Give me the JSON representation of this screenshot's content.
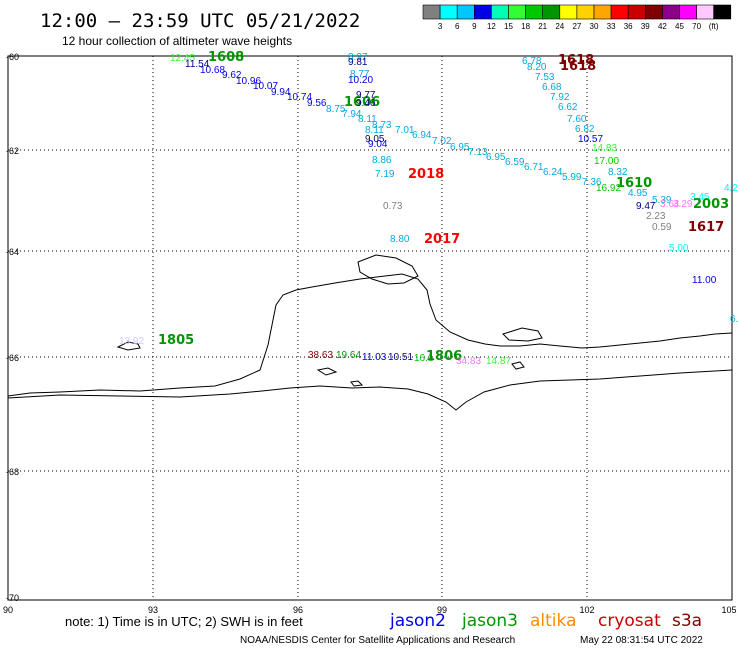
{
  "header": {
    "title": "12:00 – 23:59 UTC 05/21/2022",
    "subtitle": "12 hour collection of altimeter wave heights"
  },
  "scale": {
    "colors": [
      "#808080",
      "#00ffff",
      "#00c8ff",
      "#0000e6",
      "#00ffb4",
      "#32ff32",
      "#00c800",
      "#009600",
      "#ffff00",
      "#ffd200",
      "#ffa500",
      "#ff0000",
      "#c80000",
      "#800000",
      "#8b008b",
      "#ff00ff",
      "#ffc8ff",
      "#000000"
    ],
    "labels": [
      "3",
      "6",
      "9",
      "12",
      "15",
      "18",
      "21",
      "24",
      "27",
      "30",
      "33",
      "36",
      "39",
      "42",
      "45",
      "70",
      "(ft)"
    ]
  },
  "axes": {
    "y_ticks": [
      "-60",
      "-62",
      "-64",
      "-66",
      "-68",
      "-70"
    ],
    "x_ticks": [
      "90",
      "93",
      "96",
      "99",
      "102",
      "105"
    ]
  },
  "obs": [
    {
      "t": "12.45",
      "c": "#32ff32"
    },
    {
      "t": "1608",
      "c": "#009600",
      "time": true
    },
    {
      "t": "11.54",
      "c": "#000080"
    },
    {
      "t": "10.68",
      "c": "#0000e6"
    },
    {
      "t": "9.62",
      "c": "#0000e6"
    },
    {
      "t": "10.96",
      "c": "#0000e6"
    },
    {
      "t": "10.07",
      "c": "#0000e6"
    },
    {
      "t": "9.94",
      "c": "#0000e6"
    },
    {
      "t": "10.74",
      "c": "#0000e6"
    },
    {
      "t": "9.56",
      "c": "#0000e6"
    },
    {
      "t": "8.75",
      "c": "#00aadd"
    },
    {
      "t": "1606",
      "c": "#009600",
      "time": true
    },
    {
      "t": "8.97",
      "c": "#00aadd"
    },
    {
      "t": "9.81",
      "c": "#000080"
    },
    {
      "t": "8.77",
      "c": "#00aadd"
    },
    {
      "t": "10.20",
      "c": "#0000e6"
    },
    {
      "t": "9.77",
      "c": "#000080"
    },
    {
      "t": "9.46",
      "c": "#000080"
    },
    {
      "t": "7.94",
      "c": "#00aadd"
    },
    {
      "t": "8.11",
      "c": "#00aadd"
    },
    {
      "t": "8.73",
      "c": "#00aadd"
    },
    {
      "t": "8.11",
      "c": "#00aadd"
    },
    {
      "t": "7.01",
      "c": "#00aadd"
    },
    {
      "t": "9.05",
      "c": "#000080"
    },
    {
      "t": "9.04",
      "c": "#0000e6"
    },
    {
      "t": "6.94",
      "c": "#00aadd"
    },
    {
      "t": "7.02",
      "c": "#00aadd"
    },
    {
      "t": "6.95",
      "c": "#00aadd"
    },
    {
      "t": "7.13",
      "c": "#00aadd"
    },
    {
      "t": "6.95",
      "c": "#00aadd"
    },
    {
      "t": "6.59",
      "c": "#00aadd"
    },
    {
      "t": "6.71",
      "c": "#00aadd"
    },
    {
      "t": "6.24",
      "c": "#00aadd"
    },
    {
      "t": "5.99",
      "c": "#00aadd"
    },
    {
      "t": "8.86",
      "c": "#00aadd"
    },
    {
      "t": "7.19",
      "c": "#00aadd"
    },
    {
      "t": "2018",
      "c": "#ff0000",
      "time": true
    },
    {
      "t": "0.73",
      "c": "#808080"
    },
    {
      "t": "8.80",
      "c": "#00aadd"
    },
    {
      "t": "2017",
      "c": "#ff0000",
      "time": true
    },
    {
      "t": "6.78",
      "c": "#00aadd"
    },
    {
      "t": "8.20",
      "c": "#00aadd"
    },
    {
      "t": "1618",
      "c": "#800000",
      "time": true
    },
    {
      "t": "1618",
      "c": "#800000",
      "time": true
    },
    {
      "t": "7.53",
      "c": "#00aadd"
    },
    {
      "t": "6.68",
      "c": "#00aadd"
    },
    {
      "t": "7.92",
      "c": "#00aadd"
    },
    {
      "t": "6.62",
      "c": "#00aadd"
    },
    {
      "t": "7.60",
      "c": "#00aadd"
    },
    {
      "t": "6.82",
      "c": "#00aadd"
    },
    {
      "t": "10.57",
      "c": "#0000e6"
    },
    {
      "t": "14.83",
      "c": "#32ff32"
    },
    {
      "t": "17.00",
      "c": "#00c800"
    },
    {
      "t": "8.32",
      "c": "#00aadd"
    },
    {
      "t": "7.36",
      "c": "#00aadd"
    },
    {
      "t": "1610",
      "c": "#009600",
      "time": true
    },
    {
      "t": "16.92",
      "c": "#00c800"
    },
    {
      "t": "4.95",
      "c": "#00aadd"
    },
    {
      "t": "5.39",
      "c": "#00aadd"
    },
    {
      "t": "9.47",
      "c": "#000080"
    },
    {
      "t": "3.64",
      "c": "#ff77ff"
    },
    {
      "t": "3.29",
      "c": "#ff77ff"
    },
    {
      "t": "3.45",
      "c": "#00ffff"
    },
    {
      "t": "4.2",
      "c": "#00ffff"
    },
    {
      "t": "2003",
      "c": "#009600",
      "time": true
    },
    {
      "t": "2.23",
      "c": "#808080"
    },
    {
      "t": "0.59",
      "c": "#808080"
    },
    {
      "t": "1617",
      "c": "#800000",
      "time": true
    },
    {
      "t": "5.00",
      "c": "#00ffff"
    },
    {
      "t": "11.00",
      "c": "#0000e6"
    },
    {
      "t": "6.",
      "c": "#00aadd"
    },
    {
      "t": "13.92",
      "c": "#ccccff"
    },
    {
      "t": "1805",
      "c": "#009600",
      "time": true
    },
    {
      "t": "38.63",
      "c": "#800000"
    },
    {
      "t": "19.64",
      "c": "#009600"
    },
    {
      "t": "11.03",
      "c": "#0000e6"
    },
    {
      "t": "10.51",
      "c": "#000080"
    },
    {
      "t": "16.1",
      "c": "#00c800"
    },
    {
      "t": "1806",
      "c": "#009600",
      "time": true
    },
    {
      "t": "34.83",
      "c": "#ff77ff"
    },
    {
      "t": "14.87",
      "c": "#32ff32"
    }
  ],
  "legend": {
    "note": "note: 1) Time is in UTC; 2) SWH is in feet",
    "missions": [
      {
        "name": "jason2",
        "c": "#0000e6"
      },
      {
        "name": "jason3",
        "c": "#009600"
      },
      {
        "name": "altika",
        "c": "#ff8c00"
      },
      {
        "name": "cryosat",
        "c": "#c80000"
      },
      {
        "name": "s3a",
        "c": "#800000"
      }
    ]
  },
  "footer": {
    "credit": "NOAA/NESDIS Center for Satellite Applications and Research",
    "timestamp": "May 22 08:31:54 UTC 2022"
  }
}
